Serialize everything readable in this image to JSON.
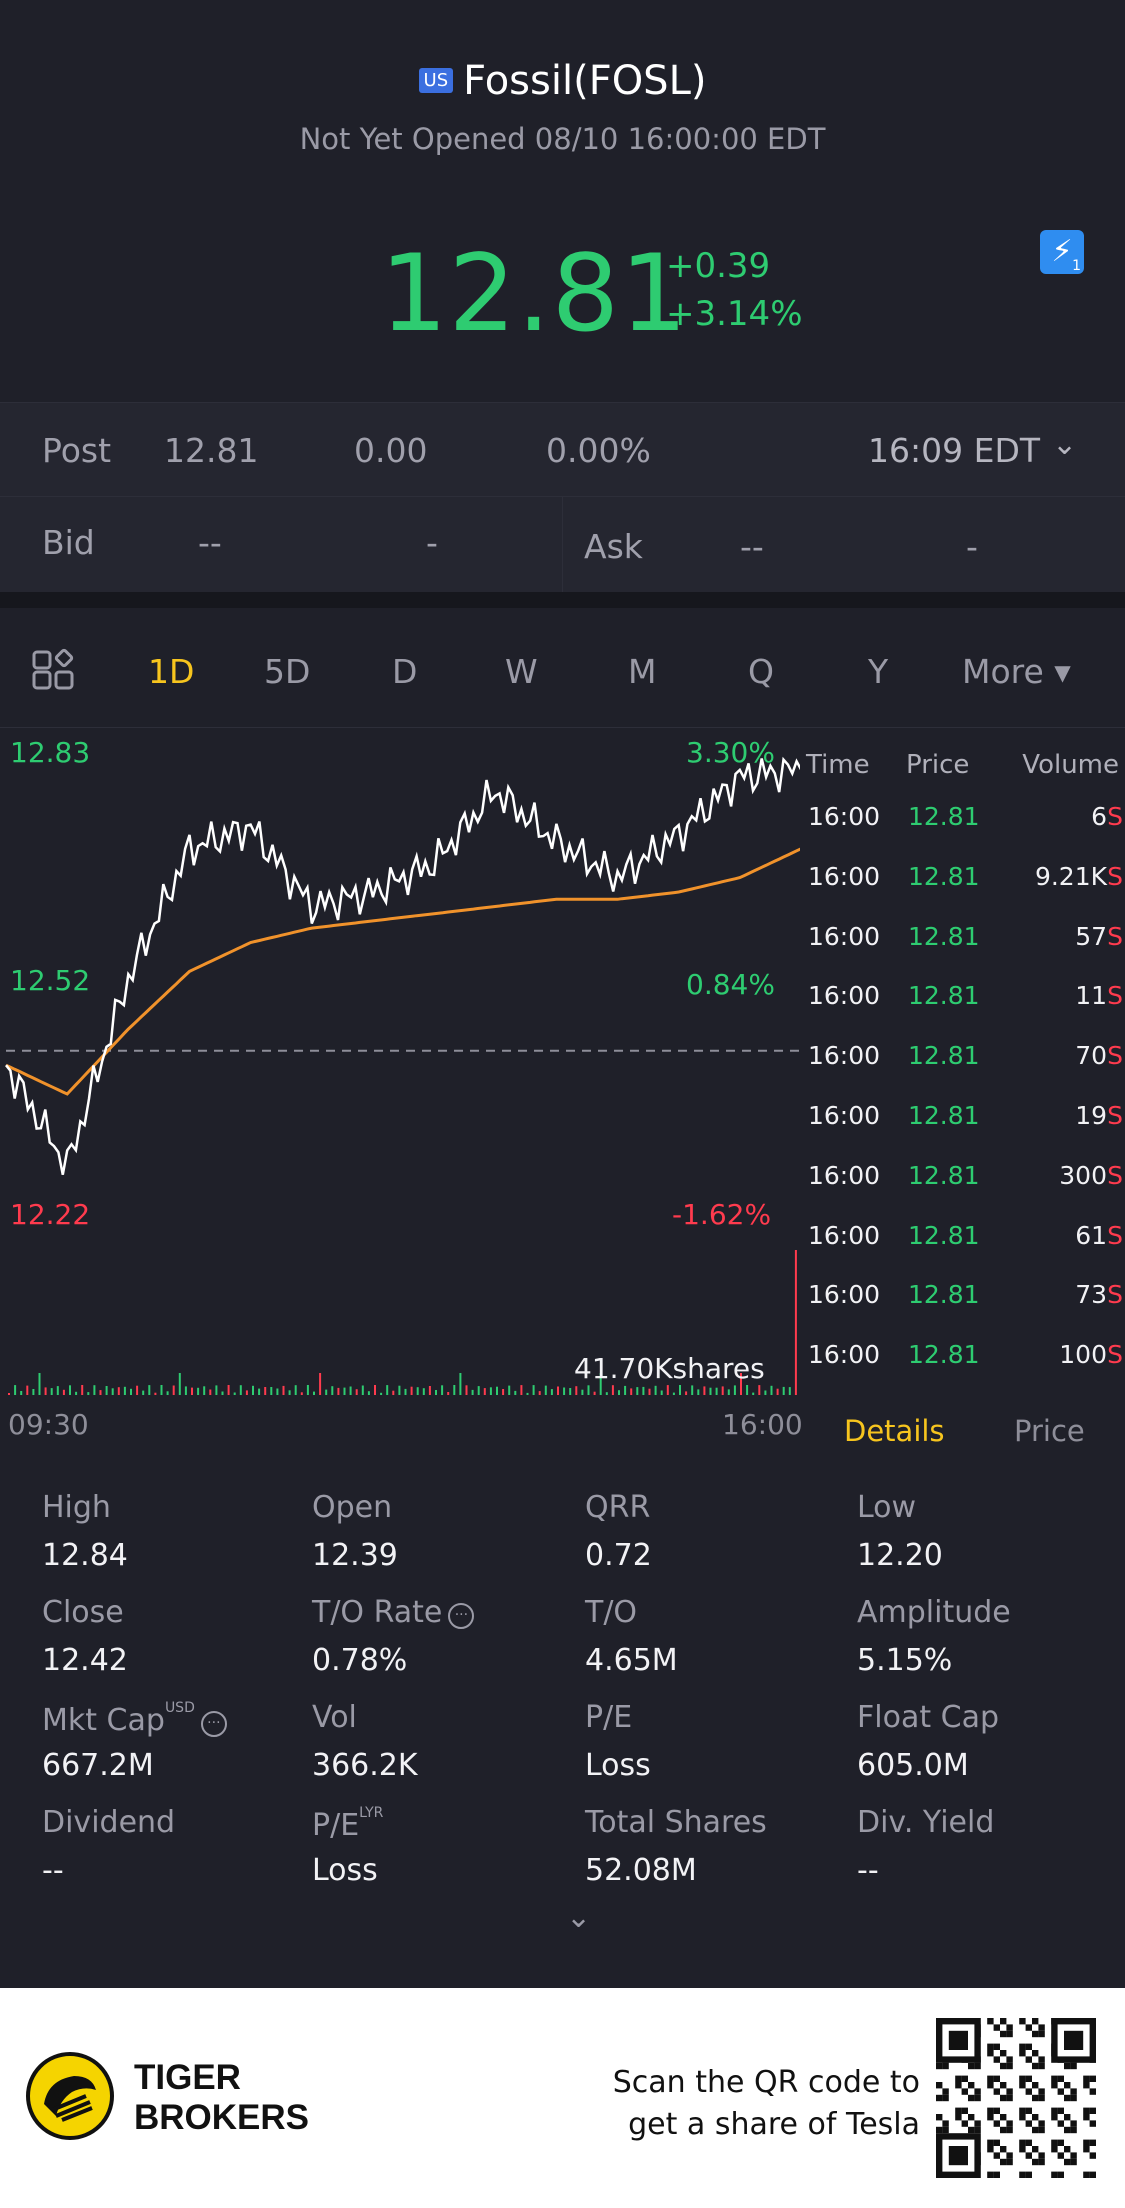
{
  "header": {
    "market_flag": "US",
    "title": "Fossil(FOSL)",
    "status": "Not Yet Opened 08/10 16:00:00 EDT"
  },
  "quote": {
    "price": "12.81",
    "change": "+0.39",
    "change_pct": "+3.14%",
    "flash_icon": "lightning-icon",
    "flash_badge": "1"
  },
  "post": {
    "label": "Post",
    "price": "12.81",
    "change": "0.00",
    "change_pct": "0.00%",
    "time": "16:09 EDT"
  },
  "bid": {
    "label": "Bid",
    "price": "--",
    "size": "-"
  },
  "ask": {
    "label": "Ask",
    "price": "--",
    "size": "-"
  },
  "tabs": [
    "1D",
    "5D",
    "D",
    "W",
    "M",
    "Q",
    "Y",
    "More ▾"
  ],
  "chart": {
    "high_price": "12.83",
    "mid_price": "12.52",
    "low_price": "12.22",
    "high_pct": "3.30%",
    "mid_pct": "0.84%",
    "low_pct": "-1.62%",
    "volume_label": "41.70Kshares",
    "start_time": "09:30",
    "end_time": "16:00",
    "colors": {
      "price_line": "#ffffff",
      "avg_line": "#f0922b",
      "up": "#2ecc71",
      "down": "#ff3b4e"
    }
  },
  "chart_data": {
    "type": "line",
    "x": [
      "09:30",
      "10:00",
      "10:30",
      "11:00",
      "11:30",
      "12:00",
      "12:30",
      "13:00",
      "13:30",
      "14:00",
      "14:30",
      "15:00",
      "15:30",
      "16:00"
    ],
    "series": [
      {
        "values": [
          12.4,
          12.26,
          12.52,
          12.7,
          12.73,
          12.62,
          12.64,
          12.68,
          12.78,
          12.71,
          12.66,
          12.72,
          12.8,
          12.81
        ]
      },
      {
        "values": [
          12.4,
          12.36,
          12.45,
          12.53,
          12.57,
          12.59,
          12.6,
          12.61,
          12.62,
          12.63,
          12.63,
          12.64,
          12.66,
          12.7
        ]
      }
    ],
    "ylim": [
      12.22,
      12.83
    ],
    "reference": 12.42
  },
  "trades": {
    "headers": [
      "Time",
      "Price",
      "Volume"
    ],
    "rows": [
      {
        "time": "16:00",
        "price": "12.81",
        "volume": "6",
        "side": "S"
      },
      {
        "time": "16:00",
        "price": "12.81",
        "volume": "9.21K",
        "side": "S"
      },
      {
        "time": "16:00",
        "price": "12.81",
        "volume": "57",
        "side": "S"
      },
      {
        "time": "16:00",
        "price": "12.81",
        "volume": "11",
        "side": "S"
      },
      {
        "time": "16:00",
        "price": "12.81",
        "volume": "70",
        "side": "S"
      },
      {
        "time": "16:00",
        "price": "12.81",
        "volume": "19",
        "side": "S"
      },
      {
        "time": "16:00",
        "price": "12.81",
        "volume": "300",
        "side": "S"
      },
      {
        "time": "16:00",
        "price": "12.81",
        "volume": "61",
        "side": "S"
      },
      {
        "time": "16:00",
        "price": "12.81",
        "volume": "73",
        "side": "S"
      },
      {
        "time": "16:00",
        "price": "12.81",
        "volume": "100",
        "side": "S"
      }
    ]
  },
  "sub_tabs": {
    "details": "Details",
    "price": "Price"
  },
  "stats": [
    {
      "label": "High",
      "value": "12.84"
    },
    {
      "label": "Open",
      "value": "12.39"
    },
    {
      "label": "QRR",
      "value": "0.72"
    },
    {
      "label": "Low",
      "value": "12.20"
    },
    {
      "label": "Close",
      "value": "12.42"
    },
    {
      "label": "T/O Rate",
      "value": "0.78%"
    },
    {
      "label": "T/O",
      "value": "4.65M"
    },
    {
      "label": "Amplitude",
      "value": "5.15%"
    },
    {
      "label": "Mkt Cap",
      "value": "667.2M",
      "sup": "USD"
    },
    {
      "label": "Vol",
      "value": "366.2K"
    },
    {
      "label": "P/E",
      "value": "Loss"
    },
    {
      "label": "Float Cap",
      "value": "605.0M"
    },
    {
      "label": "Dividend",
      "value": "--"
    },
    {
      "label": "P/E",
      "value": "Loss",
      "sup": "LYR"
    },
    {
      "label": "Total Shares",
      "value": "52.08M"
    },
    {
      "label": "Div. Yield",
      "value": "--"
    }
  ],
  "footer": {
    "brand_line1": "TIGER",
    "brand_line2": "BROKERS",
    "promo_line1": "Scan the QR code to",
    "promo_line2": "get a share of Tesla",
    "logo_color": "#f5d400"
  }
}
